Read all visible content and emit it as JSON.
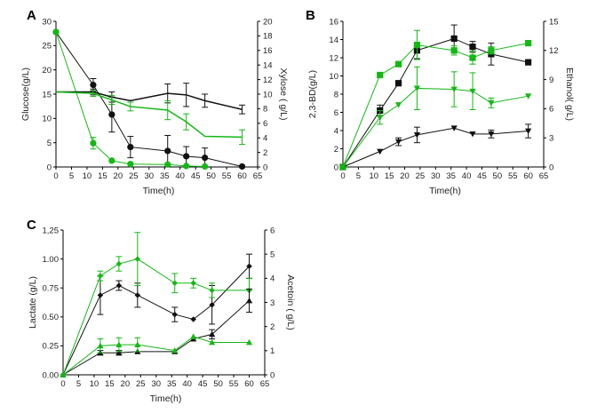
{
  "colors": {
    "black": "#111111",
    "green": "#14b814",
    "axis": "#000000"
  },
  "chart_data": [
    {
      "panel_label": "A",
      "type": "line",
      "xlabel": "Time(h)",
      "ylabel": "Glucose(g/L)",
      "ylabel_right": "Xylose ( g/L)",
      "xlim": [
        0,
        65
      ],
      "ylim": [
        0,
        30
      ],
      "ylim_right": [
        0,
        20
      ],
      "x_ticks": [
        0,
        5,
        10,
        15,
        20,
        25,
        30,
        35,
        40,
        45,
        50,
        55,
        60,
        65
      ],
      "y_ticks": [
        0,
        5,
        10,
        15,
        20,
        25,
        30
      ],
      "y_ticks_right": [
        0,
        2,
        4,
        6,
        8,
        10,
        12,
        14,
        16,
        18,
        20
      ],
      "series": [
        {
          "name": "Glucose (black)",
          "axis": "left",
          "color": "black",
          "marker": "circle",
          "x": [
            0,
            12,
            18,
            24,
            36,
            42,
            48,
            60
          ],
          "y": [
            27.8,
            16.9,
            10.8,
            4.1,
            3.3,
            2.2,
            1.9,
            0.1
          ],
          "err": [
            0,
            1.3,
            3.6,
            2.2,
            3.2,
            2.0,
            2.0,
            0
          ]
        },
        {
          "name": "Glucose (green)",
          "axis": "left",
          "color": "green",
          "marker": "circle",
          "x": [
            0,
            12,
            18,
            24,
            36,
            42,
            48
          ],
          "y": [
            27.8,
            4.9,
            1.3,
            0.6,
            0.5,
            0.2,
            0.1
          ],
          "err": [
            0,
            1.2,
            0,
            0,
            0,
            0,
            0
          ]
        },
        {
          "name": "Xylose (black)",
          "axis": "right",
          "color": "black",
          "marker": "none",
          "x": [
            0,
            12,
            18,
            24,
            36,
            42,
            48,
            60
          ],
          "y": [
            10.3,
            10.3,
            9.6,
            9.1,
            10.1,
            9.9,
            9.1,
            7.9
          ],
          "err": [
            0,
            0.4,
            0.7,
            0,
            1.3,
            1.6,
            0.9,
            0.6
          ]
        },
        {
          "name": "Xylose (green)",
          "axis": "right",
          "color": "green",
          "marker": "none",
          "x": [
            0,
            12,
            18,
            24,
            36,
            42,
            48,
            60
          ],
          "y": [
            10.3,
            10.1,
            9.2,
            8.3,
            7.8,
            6.2,
            4.2,
            4.1
          ],
          "err": [
            0,
            0.4,
            0.6,
            0.6,
            1.3,
            1.1,
            0,
            1.0
          ]
        }
      ]
    },
    {
      "panel_label": "B",
      "type": "line",
      "xlabel": "Time(h)",
      "ylabel": "2,3-BD(g/L)",
      "ylabel_right": "Ethanol( g/L)",
      "xlim": [
        0,
        65
      ],
      "ylim": [
        0,
        16
      ],
      "ylim_right": [
        0,
        15
      ],
      "x_ticks": [
        0,
        5,
        10,
        15,
        20,
        25,
        30,
        35,
        40,
        45,
        50,
        55,
        60,
        65
      ],
      "y_ticks": [
        0,
        2,
        4,
        6,
        8,
        10,
        12,
        14,
        16
      ],
      "y_ticks_right": [
        0,
        3,
        6,
        9,
        12,
        15
      ],
      "series": [
        {
          "name": "2,3-BD (black)",
          "axis": "left",
          "color": "black",
          "marker": "square",
          "x": [
            0,
            12,
            18,
            24,
            36,
            42,
            48,
            60
          ],
          "y": [
            0,
            6.2,
            9.2,
            12.8,
            14.1,
            13.2,
            12.4,
            11.5
          ],
          "err": [
            0,
            0.6,
            0,
            0.9,
            1.5,
            0.6,
            1.2,
            0
          ]
        },
        {
          "name": "2,3-BD (green)",
          "axis": "left",
          "color": "green",
          "marker": "square",
          "x": [
            0,
            12,
            18,
            24,
            36,
            42,
            48,
            60
          ],
          "y": [
            0,
            10.1,
            11.3,
            13.4,
            12.8,
            12.0,
            12.8,
            13.6
          ],
          "err": [
            0,
            0,
            0,
            1.6,
            0.5,
            0.7,
            0.4,
            0
          ]
        },
        {
          "name": "Ethanol (black)",
          "axis": "right",
          "color": "black",
          "marker": "triangle-down",
          "x": [
            0,
            12,
            18,
            24,
            36,
            42,
            48,
            60
          ],
          "y": [
            0,
            1.6,
            2.6,
            3.3,
            4.0,
            3.4,
            3.4,
            3.7
          ],
          "err": [
            0,
            0,
            0.4,
            0.8,
            0,
            0,
            0.4,
            0.7
          ]
        },
        {
          "name": "Ethanol (green)",
          "axis": "right",
          "color": "green",
          "marker": "triangle-down",
          "x": [
            0,
            12,
            18,
            24,
            36,
            42,
            48,
            60
          ],
          "y": [
            0,
            5.1,
            6.4,
            8.1,
            8.0,
            7.8,
            6.6,
            7.3
          ],
          "err": [
            0,
            0.7,
            0,
            2.2,
            1.8,
            1.9,
            0.5,
            0
          ]
        }
      ]
    },
    {
      "panel_label": "C",
      "type": "line",
      "xlabel": "Time(h)",
      "ylabel": "Lactate (g/L)",
      "ylabel_right": "Acetoin ( g/L)",
      "xlim": [
        0,
        65
      ],
      "ylim": [
        0,
        1.25
      ],
      "ylim_right": [
        0,
        6
      ],
      "x_ticks": [
        0,
        5,
        10,
        15,
        20,
        25,
        30,
        35,
        40,
        45,
        50,
        55,
        60,
        65
      ],
      "y_ticks": [
        "0.00",
        "0.25",
        "0.50",
        "0.75",
        "1.00",
        "1,25"
      ],
      "y_ticks_right": [
        0,
        1,
        2,
        3,
        4,
        5,
        6
      ],
      "series": [
        {
          "name": "Acetoin (black)",
          "axis": "right",
          "color": "black",
          "marker": "diamond",
          "x": [
            0,
            12,
            18,
            24,
            36,
            42,
            48,
            60
          ],
          "y": [
            0,
            3.3,
            3.7,
            3.3,
            2.5,
            2.3,
            2.9,
            4.5
          ],
          "err": [
            0,
            0.8,
            0.2,
            0.5,
            0.3,
            0,
            0.8,
            0.5
          ]
        },
        {
          "name": "Acetoin (green)",
          "axis": "right",
          "color": "green",
          "marker": "diamond",
          "x": [
            0,
            12,
            18,
            24,
            36,
            42,
            48,
            60
          ],
          "y": [
            0,
            4.1,
            4.6,
            4.8,
            3.8,
            3.8,
            3.5,
            3.5
          ],
          "err": [
            0,
            0.2,
            0.3,
            1.1,
            0.4,
            0.2,
            0.3,
            0.5
          ]
        },
        {
          "name": "Lactate (black)",
          "axis": "left",
          "color": "black",
          "marker": "triangle-up",
          "x": [
            0,
            12,
            18,
            24,
            36,
            42,
            48,
            60
          ],
          "y": [
            0,
            0.19,
            0.19,
            0.2,
            0.2,
            0.31,
            0.35,
            0.64
          ],
          "err": [
            0,
            0.02,
            0.02,
            0,
            0,
            0,
            0.04,
            0.1
          ]
        },
        {
          "name": "Lactate (green)",
          "axis": "left",
          "color": "green",
          "marker": "triangle-up",
          "x": [
            0,
            12,
            18,
            24,
            36,
            42,
            48,
            60
          ],
          "y": [
            0,
            0.25,
            0.26,
            0.26,
            0.21,
            0.33,
            0.28,
            0.28
          ],
          "err": [
            0,
            0.06,
            0.06,
            0.06,
            0,
            0,
            0,
            0
          ]
        }
      ]
    }
  ]
}
